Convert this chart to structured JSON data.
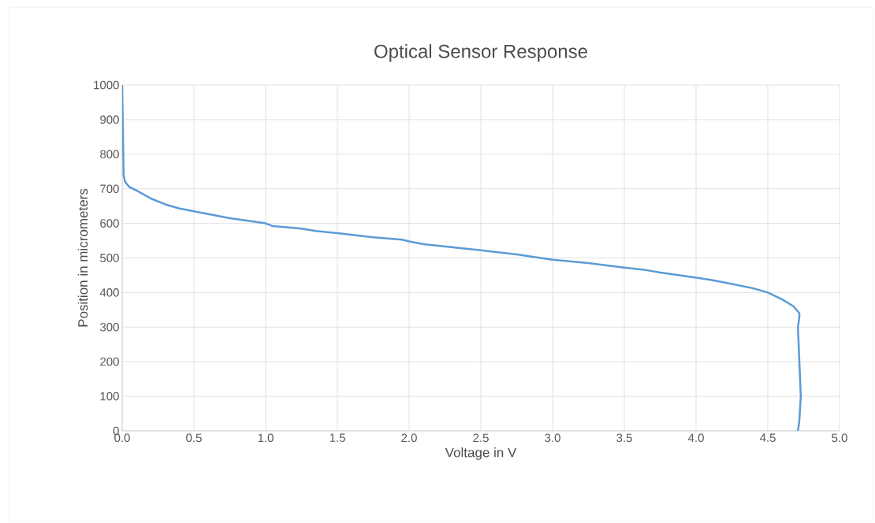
{
  "chart_data": {
    "type": "line",
    "title": "Optical Sensor Response",
    "xlabel": "Voltage in V",
    "ylabel": "Position in micrometers",
    "xlim": [
      0,
      5
    ],
    "ylim": [
      0,
      1000
    ],
    "xticks": [
      {
        "value": 0,
        "label": "0.0"
      },
      {
        "value": 0.5,
        "label": "0.5"
      },
      {
        "value": 1,
        "label": "1.0"
      },
      {
        "value": 1.5,
        "label": "1.5"
      },
      {
        "value": 2,
        "label": "2.0"
      },
      {
        "value": 2.5,
        "label": "2.5"
      },
      {
        "value": 3,
        "label": "3.0"
      },
      {
        "value": 3.5,
        "label": "3.5"
      },
      {
        "value": 4,
        "label": "4.0"
      },
      {
        "value": 4.5,
        "label": "4.5"
      },
      {
        "value": 5,
        "label": "5.0"
      }
    ],
    "yticks": [
      0,
      100,
      200,
      300,
      400,
      500,
      600,
      700,
      800,
      900,
      1000
    ],
    "grid": true,
    "marker": "none",
    "line_style": "solid",
    "series": [
      {
        "color": "#5b9bd5",
        "x": [
          0.0,
          0.01,
          0.02,
          0.05,
          0.1,
          0.2,
          0.3,
          0.4,
          0.5,
          0.6,
          0.75,
          1.0,
          1.05,
          1.25,
          1.35,
          1.5,
          1.75,
          1.95,
          2.0,
          2.1,
          2.5,
          2.75,
          3.0,
          3.25,
          3.5,
          3.65,
          3.75,
          4.0,
          4.1,
          4.25,
          4.4,
          4.5,
          4.6,
          4.68,
          4.72,
          4.72,
          4.71,
          4.72,
          4.73,
          4.72,
          4.71
        ],
        "values": [
          1000,
          740,
          720,
          705,
          695,
          672,
          655,
          643,
          635,
          627,
          615,
          600,
          592,
          585,
          578,
          572,
          560,
          553,
          548,
          540,
          522,
          510,
          495,
          485,
          472,
          465,
          458,
          443,
          437,
          425,
          412,
          400,
          380,
          360,
          340,
          330,
          300,
          200,
          100,
          30,
          0
        ]
      }
    ]
  }
}
